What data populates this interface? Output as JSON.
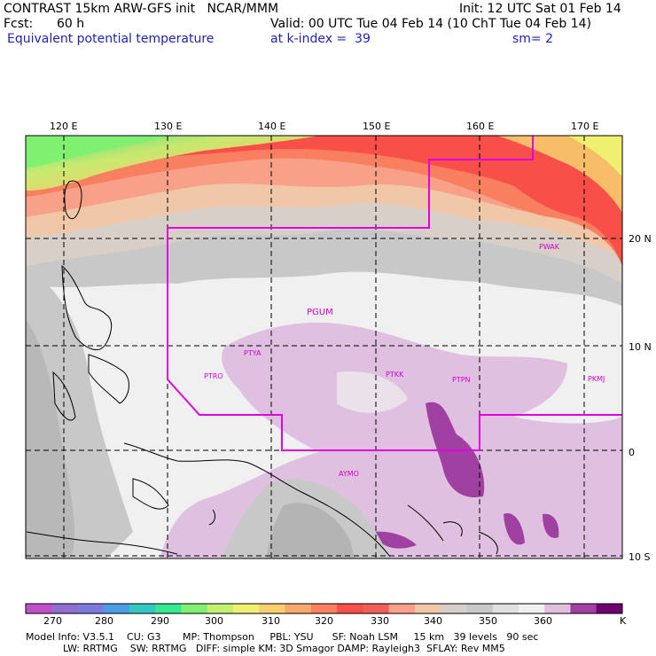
{
  "header": {
    "line1_left": "CONTRAST 15km ARW-GFS init   NCAR/MMM",
    "line1_right": "Init: 12 UTC Sat 01 Feb 14",
    "fcst_label": "Fcst:",
    "fcst_value": "60 h",
    "valid": "Valid: 00 UTC Tue 04 Feb 14 (10 ChT Tue 04 Feb 14)",
    "field_name": "Equivalent potential temperature",
    "level": "at k-index =  39",
    "smoothing": "sm= 2"
  },
  "map": {
    "longitude_labels": [
      "120 E",
      "130 E",
      "140 E",
      "150 E",
      "160 E",
      "170 E"
    ],
    "latitude_labels": [
      "20 N",
      "10 N",
      "0",
      "10 S"
    ],
    "stations": [
      "PTYA",
      "PGUM",
      "PTRO",
      "PTKK",
      "PTPN",
      "PKMJ",
      "PWAK",
      "AYMO"
    ],
    "colors": {
      "coastline": "#000000",
      "domain_boundary": "#e000e0",
      "grid_lines": "#000000",
      "station_labels": "#d000d0"
    }
  },
  "colorbar": {
    "labels": [
      "270",
      "280",
      "290",
      "300",
      "310",
      "320",
      "330",
      "340",
      "350",
      "360"
    ],
    "unit": "K",
    "colors": [
      "#c050c8",
      "#9070d0",
      "#7a7ae0",
      "#4c9ce8",
      "#35c8c0",
      "#36e890",
      "#80f070",
      "#c4f070",
      "#f0f070",
      "#f8d070",
      "#f8a868",
      "#f88060",
      "#f85048",
      "#f06058",
      "#f8a088",
      "#f0c8a8",
      "#d8d0c8",
      "#c8c8c8",
      "#e0e0e0",
      "#f0f0f0",
      "#e0c0e0",
      "#a040a0",
      "#700070"
    ]
  },
  "model_info": {
    "line1": "Model Info: V3.5.1    CU: G3       MP: Thompson     PBL: YSU      SF: Noah LSM     15 km   39 levels   90 sec",
    "line2": "            LW: RRTMG    SW: RRTMG   DIFF: simple KM: 3D Smagor DAMP: Rayleigh3  SFLAY: Rev MM5"
  }
}
